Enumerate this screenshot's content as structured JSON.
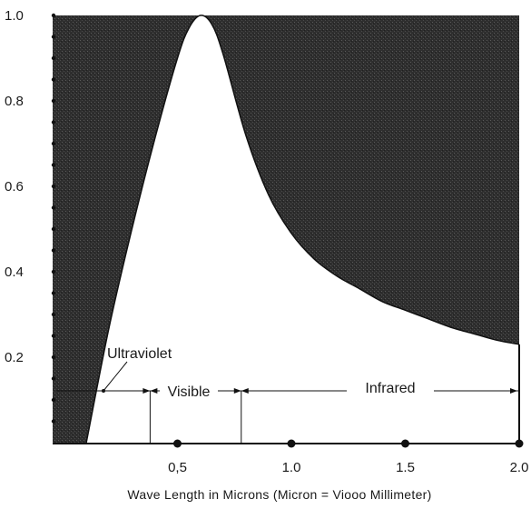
{
  "chart_data": {
    "type": "area",
    "title": "",
    "xlabel": "Wave Length in Microns (Micron =  Viooo Millimeter)",
    "ylabel": "",
    "xlim": [
      0,
      2.0
    ],
    "ylim": [
      0,
      1.0
    ],
    "x_ticks": [
      {
        "value": 0.5,
        "label": "0,5"
      },
      {
        "value": 1.0,
        "label": "1.0"
      },
      {
        "value": 1.5,
        "label": "1.5"
      },
      {
        "value": 2.0,
        "label": "2.0"
      }
    ],
    "y_ticks": [
      {
        "value": 0.2,
        "label": "0.2"
      },
      {
        "value": 0.4,
        "label": "0.4"
      },
      {
        "value": 0.6,
        "label": "0.6"
      },
      {
        "value": 0.8,
        "label": "0.8"
      },
      {
        "value": 1.0,
        "label": "1.0"
      }
    ],
    "series": [
      {
        "x": [
          0.1,
          0.2,
          0.3,
          0.4,
          0.5,
          0.55,
          0.6,
          0.65,
          0.7,
          0.8,
          0.9,
          1.0,
          1.1,
          1.2,
          1.3,
          1.4,
          1.5,
          1.6,
          1.7,
          1.8,
          1.9,
          2.0
        ],
        "y": [
          0.0,
          0.27,
          0.5,
          0.71,
          0.9,
          0.97,
          1.0,
          0.98,
          0.91,
          0.72,
          0.58,
          0.49,
          0.43,
          0.39,
          0.36,
          0.33,
          0.31,
          0.29,
          0.27,
          0.255,
          0.24,
          0.23
        ]
      }
    ],
    "regions": [
      {
        "label": "Ultraviolet",
        "x_range": [
          0.0,
          0.38
        ]
      },
      {
        "label": "Visible",
        "x_range": [
          0.38,
          0.78
        ]
      },
      {
        "label": "Infrared",
        "x_range": [
          0.78,
          2.0
        ]
      }
    ],
    "grid": false,
    "legend": "none",
    "colors": {
      "outside_fill": "#2b2b2b",
      "inside_fill": "#ffffff",
      "ink": "#111111"
    }
  }
}
